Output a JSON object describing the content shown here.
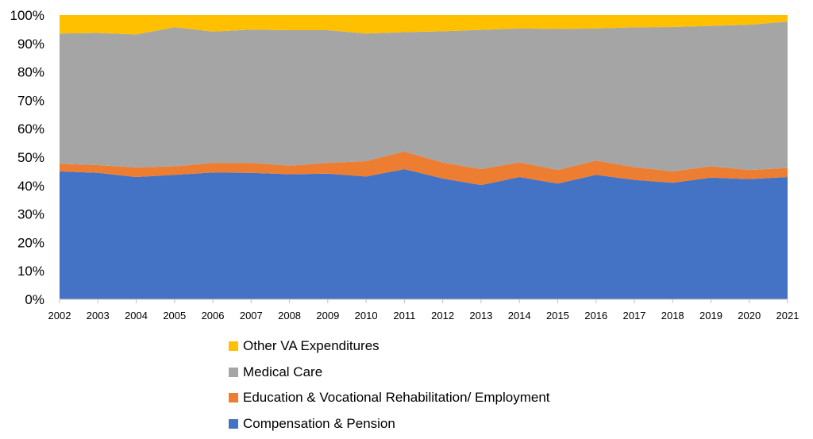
{
  "chart_data": {
    "type": "area",
    "stacked": true,
    "x": [
      "2002",
      "2003",
      "2004",
      "2005",
      "2006",
      "2007",
      "2008",
      "2009",
      "2010",
      "2011",
      "2012",
      "2013",
      "2014",
      "2015",
      "2016",
      "2017",
      "2018",
      "2019",
      "2020",
      "2021"
    ],
    "ylim": [
      0,
      100
    ],
    "yticks": [
      "0%",
      "10%",
      "20%",
      "30%",
      "40%",
      "50%",
      "60%",
      "70%",
      "80%",
      "90%",
      "100%"
    ],
    "grid": false,
    "legend_position": "bottom",
    "series": [
      {
        "name": "Compensation & Pension",
        "color": "#4472C4",
        "values": [
          45.0,
          44.5,
          43.0,
          43.8,
          44.6,
          44.5,
          44.0,
          44.2,
          43.2,
          45.8,
          42.5,
          40.2,
          43.0,
          40.7,
          43.8,
          42.0,
          41.0,
          42.8,
          42.3,
          43.0
        ]
      },
      {
        "name": "Education & Vocational Rehabilitation/ Employment",
        "color": "#ED7D31",
        "values": [
          2.7,
          2.7,
          3.4,
          3.0,
          3.4,
          3.5,
          3.0,
          3.8,
          5.4,
          6.2,
          5.6,
          5.6,
          5.2,
          4.8,
          5.0,
          4.5,
          4.0,
          4.0,
          3.2,
          3.2
        ]
      },
      {
        "name": "Medical Care",
        "color": "#A5A5A5",
        "values": [
          45.8,
          46.5,
          46.8,
          48.9,
          46.2,
          46.9,
          47.7,
          46.7,
          44.9,
          42.0,
          46.2,
          49.0,
          47.1,
          49.6,
          46.5,
          49.2,
          50.8,
          49.4,
          51.1,
          51.5
        ]
      },
      {
        "name": "Other VA Expenditures",
        "color": "#FFC000",
        "values": [
          6.5,
          6.3,
          6.8,
          4.3,
          5.8,
          5.1,
          5.3,
          5.3,
          6.5,
          6.0,
          5.7,
          5.2,
          4.7,
          4.9,
          4.7,
          4.3,
          4.2,
          3.8,
          3.4,
          2.3
        ]
      }
    ]
  },
  "legend_order": [
    3,
    2,
    1,
    0
  ]
}
